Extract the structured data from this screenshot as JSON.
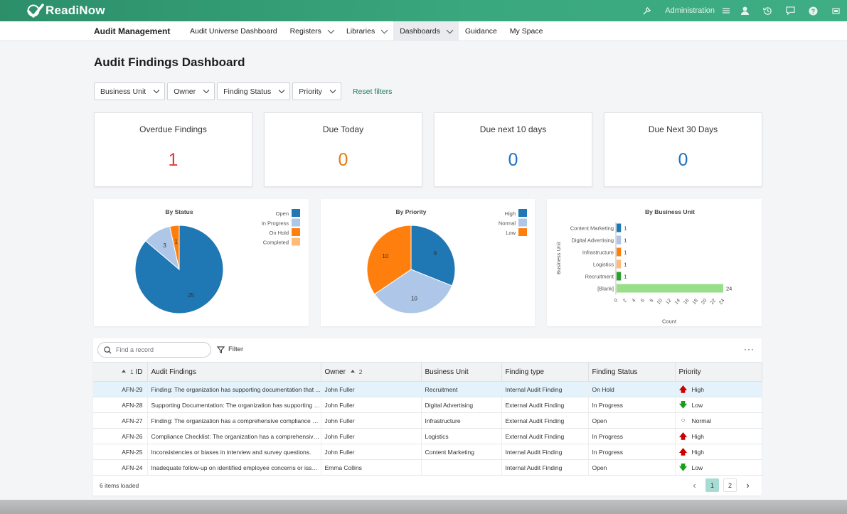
{
  "app": {
    "logo_text": "ReadiNow"
  },
  "topbar": {
    "admin_label": "Administration"
  },
  "nav": {
    "app_name": "Audit Management",
    "items": [
      {
        "label": "Audit Universe Dashboard"
      },
      {
        "label": "Registers"
      },
      {
        "label": "Libraries"
      },
      {
        "label": "Dashboards"
      },
      {
        "label": "Guidance"
      },
      {
        "label": "My Space"
      }
    ]
  },
  "page": {
    "title": "Audit Findings Dashboard"
  },
  "filters": {
    "buttons": [
      "Business Unit",
      "Owner",
      "Finding Status",
      "Priority"
    ],
    "reset_label": "Reset filters"
  },
  "kpis": [
    {
      "label": "Overdue Findings",
      "value": "1",
      "color": "#e03a3a"
    },
    {
      "label": "Due Today",
      "value": "0",
      "color": "#e07b10"
    },
    {
      "label": "Due next 10 days",
      "value": "0",
      "color": "#1e6fc0"
    },
    {
      "label": "Due Next 30 Days",
      "value": "0",
      "color": "#1e6fc0"
    }
  ],
  "chart_data": [
    {
      "type": "pie",
      "title": "By Status",
      "labels": [
        "Open",
        "In Progress",
        "On Hold",
        "Completed"
      ],
      "values": [
        25,
        3,
        1,
        0
      ],
      "colors": [
        "#1f77b4",
        "#aec7e8",
        "#ff7f0e",
        "#ffbb78"
      ],
      "legend": "top-right"
    },
    {
      "type": "pie",
      "title": "By Priority",
      "labels": [
        "High",
        "Normal",
        "Low"
      ],
      "values": [
        9,
        10,
        10
      ],
      "colors": [
        "#1f77b4",
        "#aec7e8",
        "#ff7f0e"
      ],
      "legend": "top-right"
    },
    {
      "type": "bar",
      "orientation": "horizontal",
      "title": "By Business Unit",
      "categories": [
        "Content Marketing",
        "Digital Advertising",
        "Infrastructure",
        "Logistics",
        "Recruitment",
        "[Blank]"
      ],
      "values": [
        1,
        1,
        1,
        1,
        1,
        24
      ],
      "colors": [
        "#1f77b4",
        "#aec7e8",
        "#ff7f0e",
        "#ffbb78",
        "#2ca02c",
        "#98df8a"
      ],
      "xlabel": "Count",
      "ylabel": "Business Unit",
      "xticks": [
        "0",
        "2",
        "4",
        "6",
        "8",
        "10",
        "12",
        "14",
        "16",
        "18",
        "20",
        "22",
        "24"
      ]
    }
  ],
  "grid": {
    "search_placeholder": "Find a record",
    "filter_label": "Filter",
    "more_label": "···",
    "columns": {
      "id": "ID",
      "id_sort": "1",
      "findings": "Audit Findings",
      "owner": "Owner",
      "owner_sort": "2",
      "business_unit": "Business Unit",
      "finding_type": "Finding type",
      "status": "Finding Status",
      "priority": "Priority"
    },
    "rows": [
      {
        "id": "AFN-29",
        "finding": "Finding: The organization has supporting documentation that ...",
        "owner": "John Fuller",
        "bu": "Recruitment",
        "type": "Internal Audit Finding",
        "status": "On Hold",
        "priority": "High"
      },
      {
        "id": "AFN-28",
        "finding": "Supporting Documentation: The organization has supporting d...",
        "owner": "John Fuller",
        "bu": "Digital Advertising",
        "type": "External Audit Finding",
        "status": "In Progress",
        "priority": "Low"
      },
      {
        "id": "AFN-27",
        "finding": "Finding: The organization has a comprehensive compliance ch...",
        "owner": "John Fuller",
        "bu": "Infrastructure",
        "type": "External Audit Finding",
        "status": "Open",
        "priority": "Normal"
      },
      {
        "id": "AFN-26",
        "finding": "Compliance Checklist: The organization has a comprehensive ...",
        "owner": "John Fuller",
        "bu": "Logistics",
        "type": "External Audit Finding",
        "status": "In Progress",
        "priority": "High"
      },
      {
        "id": "AFN-25",
        "finding": "Inconsistencies or biases in interview and survey questions.",
        "owner": "John Fuller",
        "bu": "Content Marketing",
        "type": "Internal Audit Finding",
        "status": "In Progress",
        "priority": "High"
      },
      {
        "id": "AFN-24",
        "finding": "Inadequate follow-up on identified employee concerns or issues.",
        "owner": "Emma Collins",
        "bu": "",
        "type": "Internal Audit Finding",
        "status": "Open",
        "priority": "Low"
      }
    ],
    "footer_count": "6 items loaded",
    "pages": [
      "1",
      "2"
    ],
    "current_page": "1"
  },
  "colors": {
    "brand": "#3aa77e",
    "link": "#1f7a5c",
    "high": "#cc0000",
    "low": "#1a9e1a"
  }
}
